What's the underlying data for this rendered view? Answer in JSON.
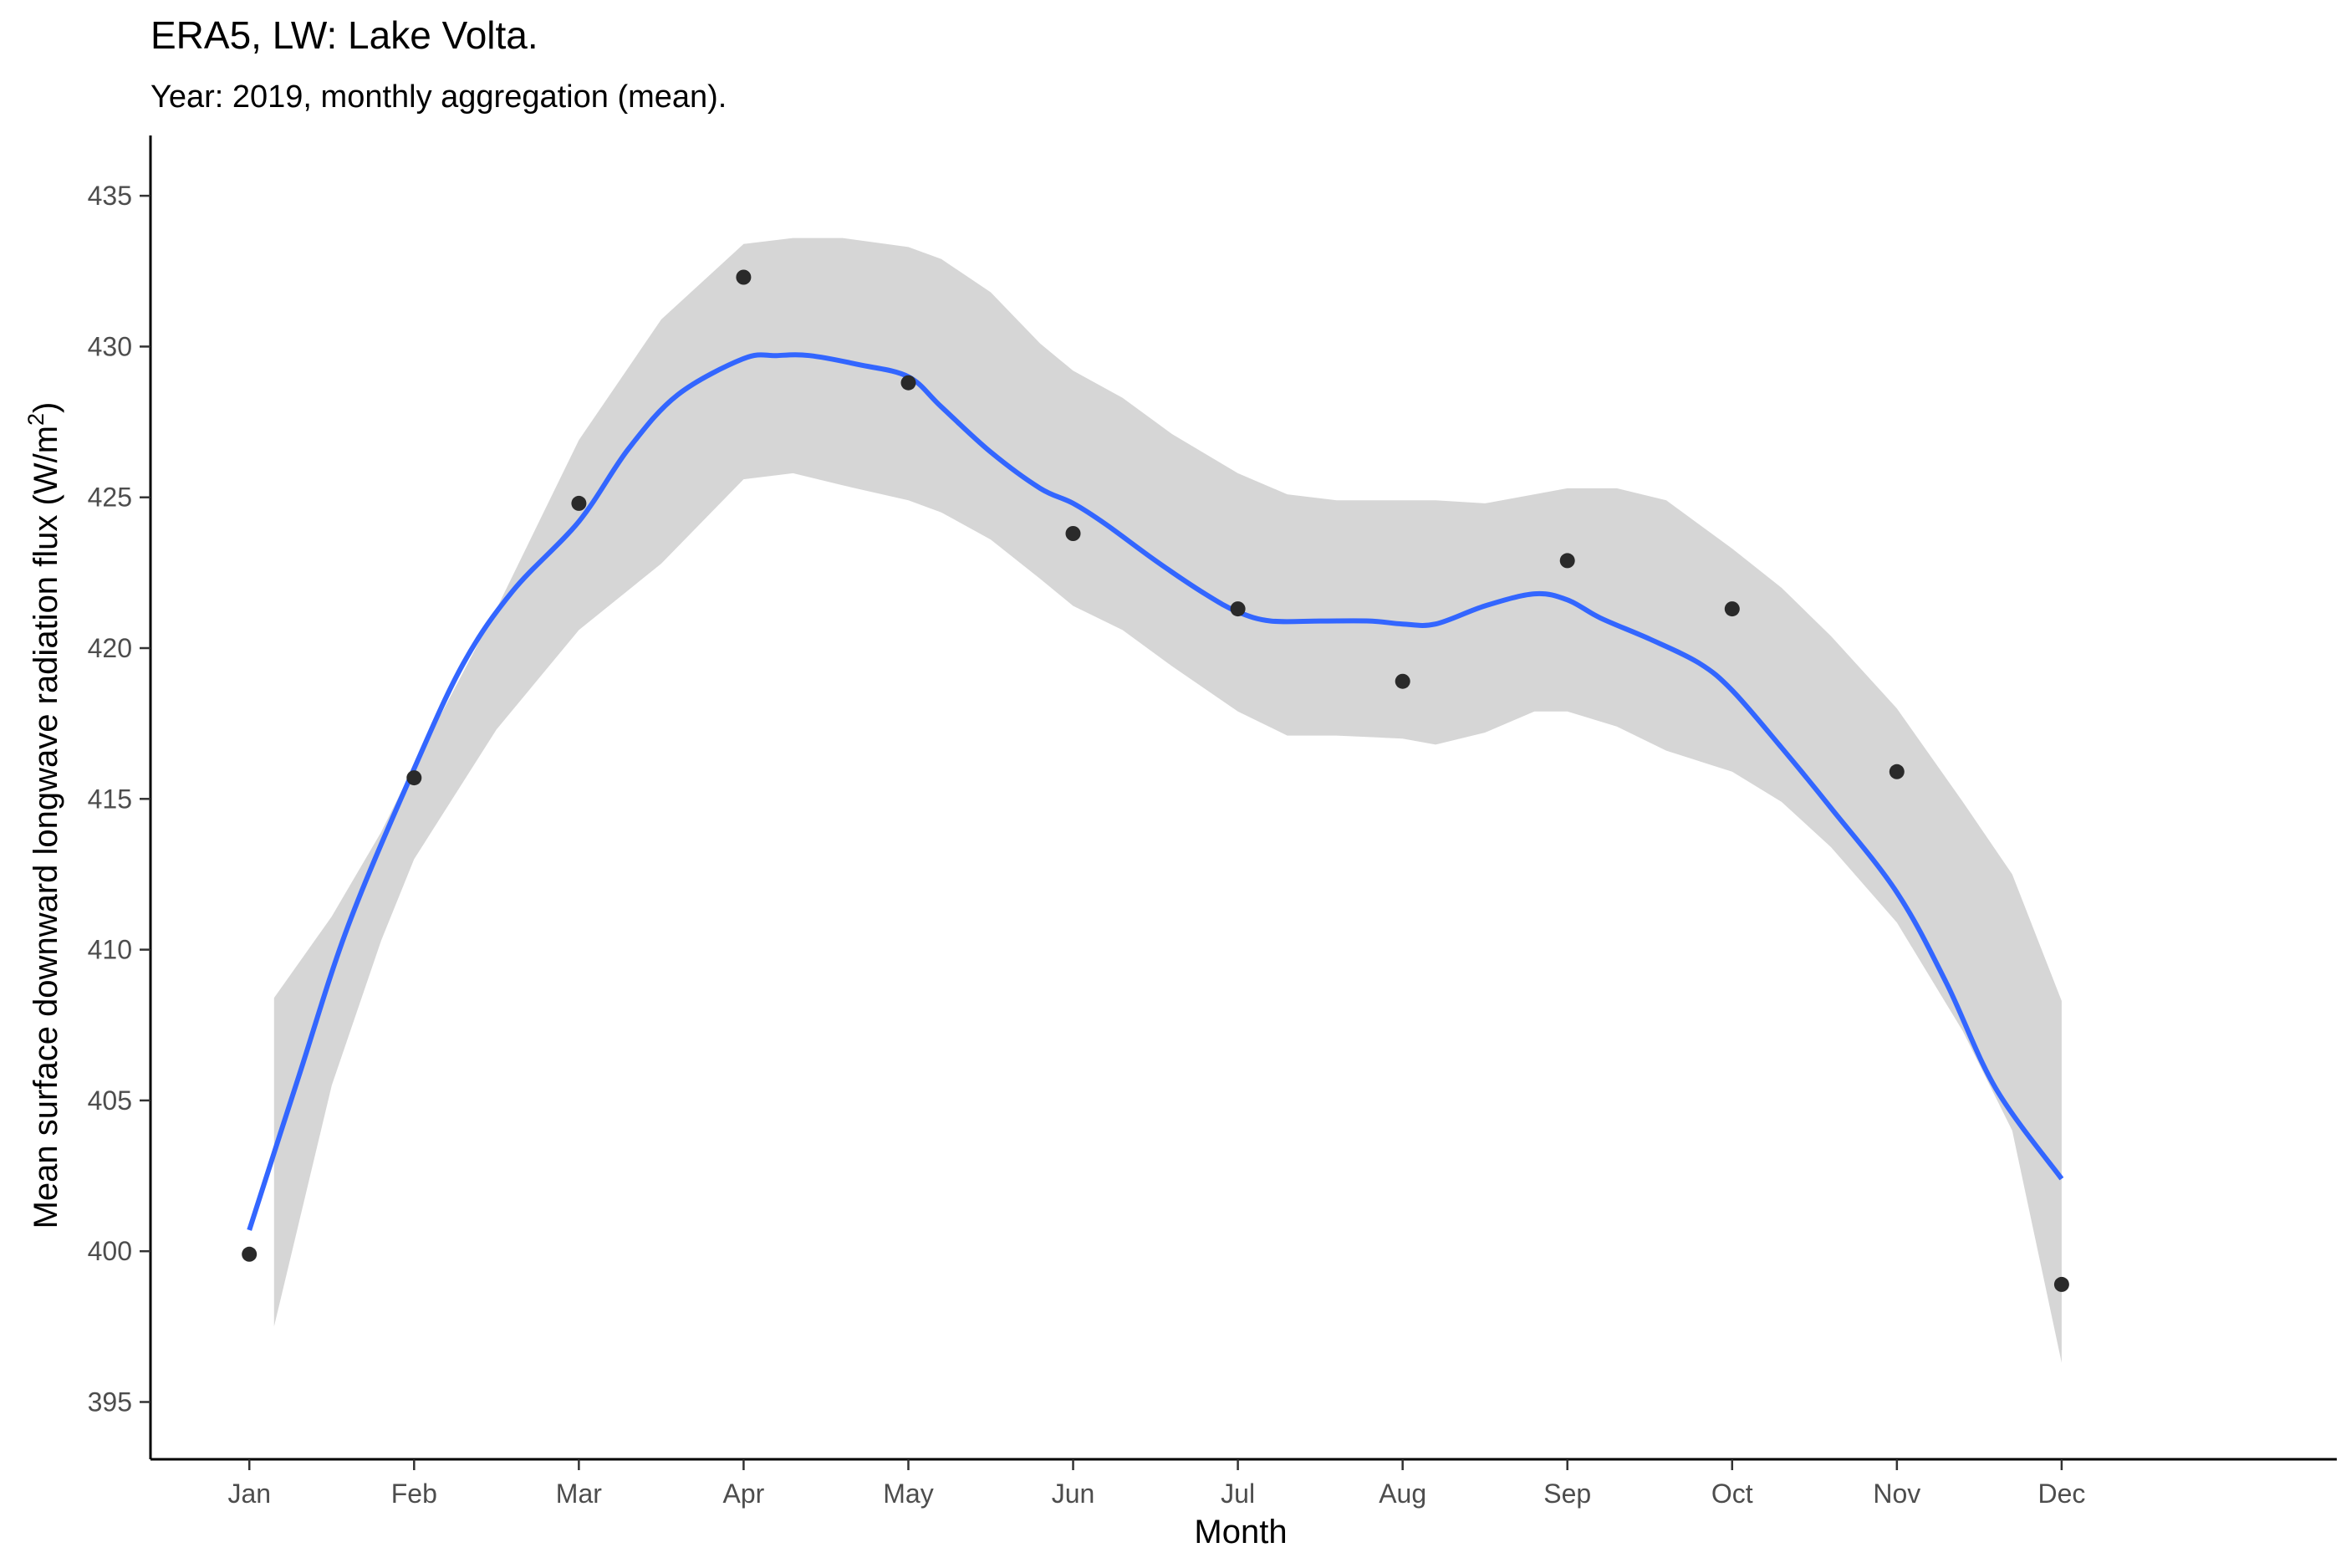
{
  "chart_data": {
    "type": "scatter",
    "title": "ERA5, LW: Lake Volta.",
    "subtitle": "Year: 2019, monthly aggregation (mean).",
    "xlabel": "Month",
    "ylabel": "Mean surface downward longwave radiation flux (W/m",
    "ylabel_superscript": "2",
    "ylabel_suffix": ")",
    "categories": [
      "Jan",
      "Feb",
      "Mar",
      "Apr",
      "May",
      "Jun",
      "Jul",
      "Aug",
      "Sep",
      "Oct",
      "Nov",
      "Dec"
    ],
    "yticks": [
      395,
      400,
      405,
      410,
      415,
      420,
      425,
      430,
      435
    ],
    "ylim": [
      393.1,
      437.0
    ],
    "xlim": [
      0.4,
      13.67
    ],
    "grid": false,
    "legend": "none",
    "series": [
      {
        "type": "points",
        "x": [
          1,
          2,
          3,
          4,
          5,
          6,
          7,
          8,
          9,
          10,
          11,
          12
        ],
        "values": [
          399.9,
          415.7,
          424.8,
          432.3,
          428.8,
          423.8,
          421.3,
          418.9,
          422.9,
          421.3,
          415.9,
          398.9
        ]
      },
      {
        "type": "loess",
        "x": [
          1.0,
          1.3,
          1.6,
          2.0,
          2.3,
          2.6,
          3.0,
          3.3,
          3.6,
          4.0,
          4.2,
          4.4,
          4.7,
          5.0,
          5.2,
          5.5,
          5.8,
          6.0,
          6.2,
          6.5,
          6.8,
          7.0,
          7.2,
          7.5,
          7.8,
          8.0,
          8.2,
          8.5,
          8.8,
          9.0,
          9.2,
          9.5,
          9.8,
          10.0,
          10.3,
          10.6,
          11.0,
          11.3,
          11.6,
          12.0
        ],
        "values": [
          400.7,
          405.8,
          410.8,
          416.0,
          419.5,
          421.9,
          424.2,
          426.6,
          428.4,
          429.6,
          429.7,
          429.7,
          429.4,
          429.0,
          428.0,
          426.5,
          425.3,
          424.8,
          424.1,
          422.9,
          421.8,
          421.2,
          420.9,
          420.9,
          420.9,
          420.8,
          420.8,
          421.4,
          421.8,
          421.6,
          421.0,
          420.3,
          419.5,
          418.6,
          416.7,
          414.7,
          411.9,
          408.9,
          405.4,
          402.4
        ]
      }
    ],
    "confidence_band": {
      "x": [
        1.15,
        1.5,
        1.8,
        2.0,
        2.5,
        3.0,
        3.5,
        4.0,
        4.3,
        4.6,
        5.0,
        5.2,
        5.5,
        5.8,
        6.0,
        6.3,
        6.6,
        7.0,
        7.3,
        7.6,
        8.0,
        8.2,
        8.5,
        8.8,
        9.0,
        9.3,
        9.6,
        10.0,
        10.3,
        10.6,
        11.0,
        11.4,
        11.7,
        12.0
      ],
      "lower": [
        397.5,
        405.5,
        410.3,
        413.0,
        417.3,
        420.6,
        422.8,
        425.6,
        425.8,
        425.4,
        424.9,
        424.5,
        423.6,
        422.3,
        421.4,
        420.6,
        419.4,
        417.9,
        417.1,
        417.1,
        417.0,
        416.8,
        417.2,
        417.9,
        417.9,
        417.4,
        416.6,
        415.9,
        414.9,
        413.4,
        410.9,
        407.3,
        404.0,
        396.3
      ],
      "upper": [
        408.4,
        411.1,
        413.9,
        416.1,
        421.3,
        426.9,
        430.9,
        433.4,
        433.6,
        433.6,
        433.3,
        432.9,
        431.8,
        430.1,
        429.2,
        428.3,
        427.1,
        425.8,
        425.1,
        424.9,
        424.9,
        424.9,
        424.8,
        425.1,
        425.3,
        425.3,
        424.9,
        423.3,
        422.0,
        420.4,
        418.0,
        414.9,
        412.5,
        408.3
      ]
    },
    "colors": {
      "points": "#2a2a2a",
      "line": "#3366ff",
      "band": "#d6d6d6"
    }
  }
}
